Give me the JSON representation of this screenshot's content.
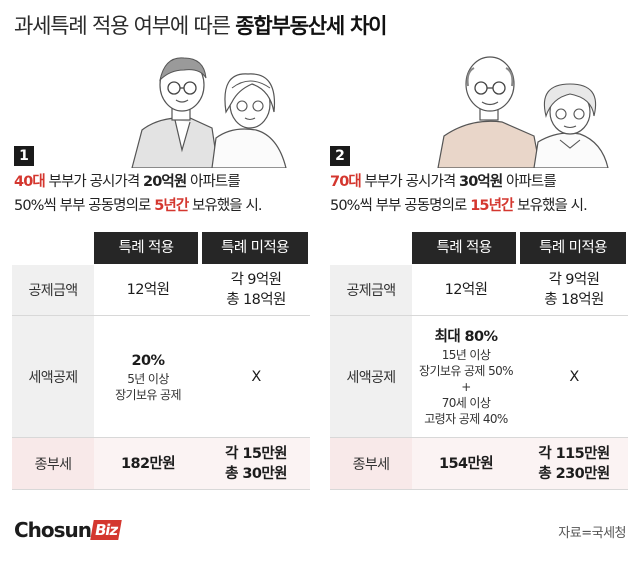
{
  "title": {
    "normal": "과세특례 적용 여부에 따른 ",
    "bold": "종합부동산세 차이"
  },
  "headers": {
    "apply": "특례 적용",
    "not_apply": "특례 미적용"
  },
  "cases": [
    {
      "number": "1",
      "desc_line1": {
        "age": "40대",
        "t1": " 부부가 공시가격 ",
        "price": "20억원",
        "t2": " 아파트를"
      },
      "desc_line2": {
        "t1": "50%씩 부부 공동명의로 ",
        "period": "5년간",
        "t2": " 보유했을 시."
      },
      "rows": [
        {
          "label": "공제금액",
          "apply": [
            "12억원"
          ],
          "not_apply": [
            "각 9억원",
            "총 18억원"
          ]
        },
        {
          "label": "세액공제",
          "apply_bold": "20%",
          "apply_small": [
            "5년 이상",
            "장기보유 공제"
          ],
          "not_apply": [
            "X"
          ]
        },
        {
          "label": "종부세",
          "apply": [
            "182만원"
          ],
          "not_apply": [
            "각 15만원",
            "총 30만원"
          ]
        }
      ]
    },
    {
      "number": "2",
      "desc_line1": {
        "age": "70대",
        "t1": " 부부가 공시가격 ",
        "price": "30억원",
        "t2": " 아파트를"
      },
      "desc_line2": {
        "t1": "50%씩 부부 공동명의로 ",
        "period": "15년간",
        "t2": " 보유했을 시."
      },
      "rows": [
        {
          "label": "공제금액",
          "apply": [
            "12억원"
          ],
          "not_apply": [
            "각 9억원",
            "총 18억원"
          ]
        },
        {
          "label": "세액공제",
          "apply_bold": "최대 80%",
          "apply_small": [
            "15년 이상",
            "장기보유 공제 50%",
            "+",
            "70세 이상",
            "고령자 공제 40%"
          ],
          "not_apply": [
            "X"
          ]
        },
        {
          "label": "종부세",
          "apply": [
            "154만원"
          ],
          "not_apply": [
            "각 115만원",
            "총 230만원"
          ]
        }
      ]
    }
  ],
  "logo": {
    "main": "Chosun",
    "biz": "Biz"
  },
  "source": "자료=국세청",
  "colors": {
    "highlight": "#d4372f",
    "header_bg": "#262626",
    "tax_row_bg": "#f8e9e9"
  }
}
